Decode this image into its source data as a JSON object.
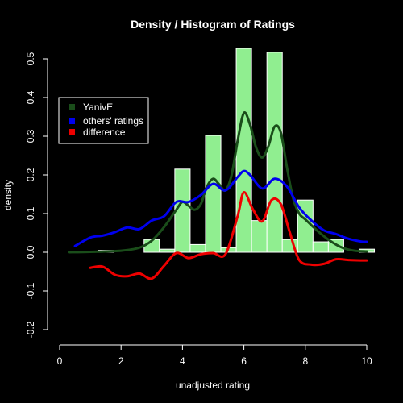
{
  "chart_data": {
    "type": "histogram",
    "title": "Density / Histogram of Ratings",
    "xlabel": "unadjusted rating",
    "ylabel": "density",
    "xlim": [
      0,
      10
    ],
    "ylim": [
      -0.2,
      0.5
    ],
    "x_ticks": [
      "0",
      "2",
      "4",
      "6",
      "8",
      "10"
    ],
    "y_ticks": [
      "-0.2",
      "-0.1",
      "0.0",
      "0.1",
      "0.2",
      "0.3",
      "0.4",
      "0.5"
    ],
    "bar_color": "#90EE90",
    "bars": [
      {
        "x0": 1.25,
        "x1": 1.75,
        "value": 0.005
      },
      {
        "x0": 2.75,
        "x1": 3.25,
        "value": 0.033
      },
      {
        "x0": 3.25,
        "x1": 3.75,
        "value": 0.008
      },
      {
        "x0": 3.75,
        "x1": 4.25,
        "value": 0.215
      },
      {
        "x0": 4.25,
        "x1": 4.75,
        "value": 0.02
      },
      {
        "x0": 4.75,
        "x1": 5.25,
        "value": 0.302
      },
      {
        "x0": 5.25,
        "x1": 5.75,
        "value": 0.012
      },
      {
        "x0": 5.75,
        "x1": 6.25,
        "value": 0.527
      },
      {
        "x0": 6.25,
        "x1": 6.75,
        "value": 0.082
      },
      {
        "x0": 6.75,
        "x1": 7.25,
        "value": 0.517
      },
      {
        "x0": 7.25,
        "x1": 7.75,
        "value": 0.033
      },
      {
        "x0": 7.75,
        "x1": 8.25,
        "value": 0.135
      },
      {
        "x0": 8.25,
        "x1": 8.75,
        "value": 0.027
      },
      {
        "x0": 8.75,
        "x1": 9.25,
        "value": 0.033
      },
      {
        "x0": 9.75,
        "x1": 10.25,
        "value": 0.008
      }
    ],
    "series": [
      {
        "name": "YanivE",
        "color": "#1a4d1a",
        "x": [
          0.3,
          1,
          2,
          2.6,
          3,
          3.4,
          3.8,
          4,
          4.2,
          4.4,
          4.6,
          4.8,
          5,
          5.2,
          5.4,
          5.6,
          5.8,
          6,
          6.2,
          6.4,
          6.6,
          6.8,
          7,
          7.2,
          7.4,
          7.6,
          7.8,
          8,
          8.4,
          8.8,
          9.2,
          9.6,
          10
        ],
        "y": [
          0.0,
          0.001,
          0.004,
          0.012,
          0.03,
          0.065,
          0.11,
          0.13,
          0.12,
          0.11,
          0.125,
          0.17,
          0.19,
          0.175,
          0.16,
          0.2,
          0.29,
          0.36,
          0.33,
          0.27,
          0.245,
          0.275,
          0.325,
          0.31,
          0.22,
          0.14,
          0.1,
          0.085,
          0.055,
          0.03,
          0.012,
          0.004,
          0.002
        ]
      },
      {
        "name": "others' ratings",
        "color": "#0000ee",
        "x": [
          0.5,
          1,
          1.4,
          1.8,
          2.2,
          2.6,
          3,
          3.4,
          3.8,
          4.2,
          4.6,
          5,
          5.4,
          5.8,
          6,
          6.2,
          6.6,
          7,
          7.4,
          7.8,
          8.2,
          8.6,
          9,
          9.4,
          9.8,
          10
        ],
        "y": [
          0.016,
          0.038,
          0.043,
          0.052,
          0.064,
          0.06,
          0.082,
          0.093,
          0.13,
          0.13,
          0.148,
          0.177,
          0.16,
          0.195,
          0.21,
          0.2,
          0.165,
          0.19,
          0.17,
          0.116,
          0.082,
          0.057,
          0.047,
          0.035,
          0.028,
          0.027
        ]
      },
      {
        "name": "difference",
        "color": "#ee0000",
        "x": [
          1,
          1.4,
          1.8,
          2.2,
          2.6,
          3,
          3.4,
          3.8,
          4.2,
          4.6,
          5,
          5.4,
          5.8,
          6,
          6.3,
          6.6,
          6.9,
          7.2,
          7.5,
          7.8,
          8.2,
          8.6,
          9,
          9.4,
          9.8,
          10
        ],
        "y": [
          -0.04,
          -0.037,
          -0.058,
          -0.062,
          -0.055,
          -0.068,
          -0.035,
          -0.002,
          -0.015,
          -0.005,
          -0.002,
          -0.005,
          0.095,
          0.155,
          0.11,
          0.08,
          0.135,
          0.125,
          0.05,
          -0.02,
          -0.032,
          -0.03,
          -0.018,
          -0.02,
          -0.021,
          -0.021
        ]
      }
    ],
    "legend": {
      "position": "top-left",
      "entries": [
        {
          "label": "YanivE",
          "color": "#1a4d1a"
        },
        {
          "label": "others' ratings",
          "color": "#0000ee"
        },
        {
          "label": "difference",
          "color": "#ee0000"
        }
      ]
    }
  }
}
